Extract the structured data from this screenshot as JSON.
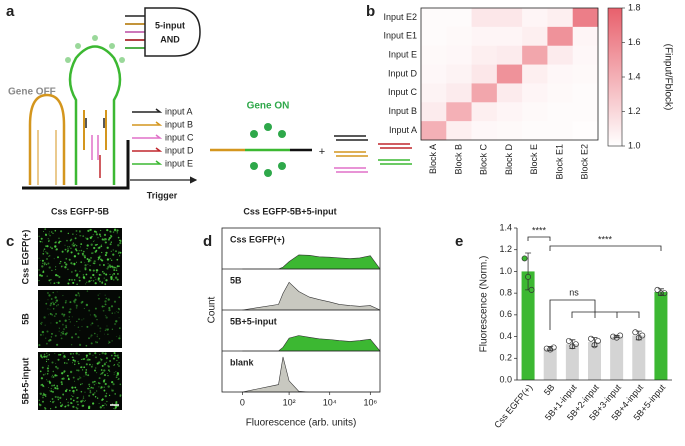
{
  "panel_labels": [
    "a",
    "b",
    "c",
    "d",
    "e"
  ],
  "diagram": {
    "gene_off": "Gene OFF",
    "gate": [
      "5-input",
      "AND"
    ],
    "inputs": [
      "input A",
      "input B",
      "input C",
      "input D",
      "input E"
    ],
    "trigger": "Trigger",
    "left_name": "Css EGFP-5B",
    "gene_on": "Gene ON",
    "plus": "+",
    "right_name": "Css EGFP-5B+5-input"
  },
  "images": {
    "labels": [
      "Css EGFP(+)",
      "5B",
      "5B+5-input"
    ]
  },
  "chart_data": [
    {
      "type": "heatmap",
      "x_categories": [
        "Block A",
        "Block B",
        "Block C",
        "Block D",
        "Block E",
        "Block E1",
        "Block E2"
      ],
      "y_categories": [
        "Input E2",
        "Input E1",
        "Input E",
        "Input D",
        "Input C",
        "Input B",
        "Input A"
      ],
      "values": [
        [
          1.02,
          1.02,
          1.12,
          1.12,
          1.05,
          1.08,
          1.65
        ],
        [
          1.02,
          1.03,
          1.05,
          1.05,
          1.08,
          1.55,
          1.05
        ],
        [
          1.03,
          1.04,
          1.08,
          1.1,
          1.45,
          1.1,
          1.04
        ],
        [
          1.04,
          1.06,
          1.12,
          1.55,
          1.08,
          1.04,
          1.03
        ],
        [
          1.06,
          1.1,
          1.45,
          1.1,
          1.05,
          1.03,
          1.02
        ],
        [
          1.1,
          1.4,
          1.08,
          1.05,
          1.03,
          1.02,
          1.02
        ],
        [
          1.4,
          1.08,
          1.04,
          1.03,
          1.02,
          1.02,
          1.01
        ]
      ],
      "colors": [
        "#ffffff",
        "#e8606c"
      ],
      "colorbar": {
        "lim": [
          1.0,
          1.8
        ],
        "ticks": [
          {
            "value": 1.0,
            "label": "1.0"
          },
          1.2,
          1.4,
          1.6,
          1.8
        ],
        "label": "(Finput/Fblock)"
      }
    },
    {
      "type": "flow-histogram",
      "x": [
        0,
        30,
        50,
        100,
        300,
        1000,
        3000,
        10000,
        30000,
        100000,
        300000,
        1000000,
        3000000
      ],
      "series": [
        {
          "name": "Css EGFP(+)",
          "color": "#3cb832",
          "values": [
            0,
            0,
            0.05,
            0.2,
            0.38,
            0.37,
            0.33,
            0.32,
            0.3,
            0.28,
            0.3,
            0.36,
            0
          ]
        },
        {
          "name": "5B",
          "color": "#c8c8c0",
          "values": [
            0,
            0.15,
            0.45,
            0.75,
            0.5,
            0.35,
            0.28,
            0.22,
            0.15,
            0.12,
            0.1,
            0.12,
            0
          ]
        },
        {
          "name": "5B+5-input",
          "color": "#3cb832",
          "values": [
            0,
            0,
            0.1,
            0.35,
            0.42,
            0.37,
            0.33,
            0.31,
            0.28,
            0.26,
            0.28,
            0.32,
            0
          ]
        },
        {
          "name": "blank",
          "color": "#c8c8c0",
          "values": [
            0,
            0.2,
            0.95,
            0.3,
            0.02,
            0,
            0,
            0,
            0,
            0,
            0,
            0,
            0
          ]
        }
      ],
      "xscale": "asinh",
      "xlim": [
        -5,
        3000000
      ],
      "xticks": [
        0,
        {
          "value": 100,
          "label": "10²"
        },
        {
          "value": 10000,
          "label": "10⁴"
        },
        {
          "value": 1000000,
          "label": "10⁶"
        }
      ],
      "ylim": [
        0,
        1
      ],
      "xlabel": "Fluorescence (arb. units)",
      "ylabel": "Count"
    },
    {
      "type": "bar",
      "categories": [
        "Css EGFP(+)",
        "5B",
        "5B+1-input",
        "5B+2-input",
        "5B+3-input",
        "5B+4-input",
        "5B+5-input"
      ],
      "values": [
        1.0,
        0.29,
        0.33,
        0.35,
        0.4,
        0.41,
        0.81
      ],
      "errors": [
        0.17,
        0.02,
        0.04,
        0.04,
        0.01,
        0.04,
        0.03
      ],
      "points": [
        [
          1.12,
          0.95,
          0.83
        ],
        [
          0.29,
          0.28,
          0.3
        ],
        [
          0.36,
          0.31,
          0.33
        ],
        [
          0.38,
          0.32,
          0.36
        ],
        [
          0.4,
          0.39,
          0.41
        ],
        [
          0.44,
          0.39,
          0.41
        ],
        [
          0.83,
          0.8,
          0.8
        ]
      ],
      "colors": [
        "#3cb832",
        "#d4d4d4",
        "#d4d4d4",
        "#d4d4d4",
        "#d4d4d4",
        "#d4d4d4",
        "#3cb832"
      ],
      "ylim": [
        0,
        1.4
      ],
      "yticks": [
        {
          "value": 0,
          "label": "0.0"
        },
        0.2,
        0.4,
        0.6,
        0.8,
        {
          "value": 1.0,
          "label": "1.0"
        },
        1.2,
        1.4
      ],
      "ylabel": "Fluorescence (Norm.)",
      "annotations": [
        "****",
        "ns",
        "****"
      ]
    }
  ]
}
